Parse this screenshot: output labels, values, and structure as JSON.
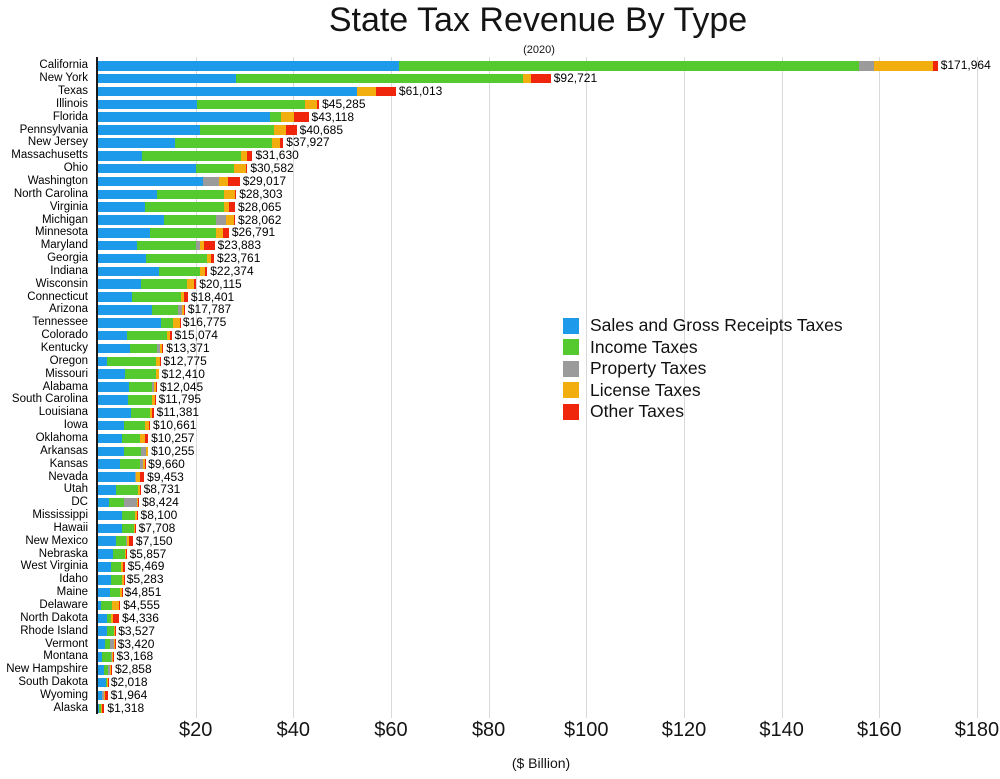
{
  "title": "State Tax Revenue By Type",
  "subtitle": "(2020)",
  "axis": {
    "xlabel": "($ Billion)",
    "ticks": [
      {
        "value": 20,
        "label": "$20"
      },
      {
        "value": 40,
        "label": "$40"
      },
      {
        "value": 60,
        "label": "$60"
      },
      {
        "value": 80,
        "label": "$80"
      },
      {
        "value": 100,
        "label": "$100"
      },
      {
        "value": 120,
        "label": "$120"
      },
      {
        "value": 140,
        "label": "$140"
      },
      {
        "value": 160,
        "label": "$160"
      },
      {
        "value": 180,
        "label": "$180"
      }
    ],
    "xmin": 0,
    "xmax": 182
  },
  "legend": {
    "items": [
      {
        "label": "Sales and Gross Receipts Taxes",
        "color": "#1E9AEA"
      },
      {
        "label": "Income Taxes",
        "color": "#55CA2F"
      },
      {
        "label": "Property Taxes",
        "color": "#9B9B9B"
      },
      {
        "label": "License Taxes",
        "color": "#F2AE0F"
      },
      {
        "label": "Other Taxes",
        "color": "#EF260C"
      }
    ]
  },
  "chart_data": {
    "type": "bar",
    "orientation": "horizontal",
    "stacked": true,
    "title": "State Tax Revenue By Type",
    "subtitle": "(2020)",
    "value_unit": "$ Million",
    "axis_unit": "$ Billion",
    "xlim": [
      0,
      182
    ],
    "grid": true,
    "legend_position": "center-right",
    "series": [
      "Sales and Gross Receipts Taxes",
      "Income Taxes",
      "Property Taxes",
      "License Taxes",
      "Other Taxes"
    ],
    "colors": [
      "#1E9AEA",
      "#55CA2F",
      "#9B9B9B",
      "#F2AE0F",
      "#EF260C"
    ],
    "states": [
      {
        "name": "California",
        "total": 171964,
        "total_label": "$171,964",
        "values": [
          61600,
          94200,
          3100,
          12200,
          864
        ]
      },
      {
        "name": "New York",
        "total": 92721,
        "total_label": "$92,721",
        "values": [
          28200,
          58800,
          0,
          1700,
          4021
        ]
      },
      {
        "name": "Texas",
        "total": 61013,
        "total_label": "$61,013",
        "values": [
          53100,
          0,
          0,
          3900,
          4013
        ]
      },
      {
        "name": "Illinois",
        "total": 45285,
        "total_label": "$45,285",
        "values": [
          20300,
          22000,
          0,
          2600,
          385
        ]
      },
      {
        "name": "Florida",
        "total": 43118,
        "total_label": "$43,118",
        "values": [
          35300,
          2200,
          0,
          2700,
          2918
        ]
      },
      {
        "name": "Pennsylvania",
        "total": 40685,
        "total_label": "$40,685",
        "values": [
          20900,
          15100,
          0,
          2600,
          2085
        ]
      },
      {
        "name": "New Jersey",
        "total": 37927,
        "total_label": "$37,927",
        "values": [
          15800,
          19900,
          0,
          1500,
          727
        ]
      },
      {
        "name": "Massachusetts",
        "total": 31630,
        "total_label": "$31,630",
        "values": [
          9000,
          20300,
          0,
          1300,
          1030
        ]
      },
      {
        "name": "Ohio",
        "total": 30582,
        "total_label": "$30,582",
        "values": [
          20100,
          7700,
          0,
          2600,
          182
        ]
      },
      {
        "name": "Washington",
        "total": 29017,
        "total_label": "$29,017",
        "values": [
          21500,
          0,
          3200,
          2000,
          2317
        ]
      },
      {
        "name": "North Carolina",
        "total": 28303,
        "total_label": "$28,303",
        "values": [
          12000,
          13800,
          0,
          2300,
          203
        ]
      },
      {
        "name": "Virginia",
        "total": 28065,
        "total_label": "$28,065",
        "values": [
          9600,
          16300,
          0,
          900,
          1265
        ]
      },
      {
        "name": "Michigan",
        "total": 28062,
        "total_label": "$28,062",
        "values": [
          13600,
          10600,
          2100,
          1500,
          262
        ]
      },
      {
        "name": "Minnesota",
        "total": 26791,
        "total_label": "$26,791",
        "values": [
          10700,
          13400,
          0,
          1500,
          1191
        ]
      },
      {
        "name": "Maryland",
        "total": 23883,
        "total_label": "$23,883",
        "values": [
          8000,
          12100,
          800,
          900,
          2083
        ]
      },
      {
        "name": "Georgia",
        "total": 23761,
        "total_label": "$23,761",
        "values": [
          9900,
          12500,
          0,
          700,
          661
        ]
      },
      {
        "name": "Indiana",
        "total": 22374,
        "total_label": "$22,374",
        "values": [
          12500,
          8400,
          0,
          1000,
          474
        ]
      },
      {
        "name": "Wisconsin",
        "total": 20115,
        "total_label": "$20,115",
        "values": [
          8900,
          9300,
          0,
          1400,
          515
        ]
      },
      {
        "name": "Connecticut",
        "total": 18401,
        "total_label": "$18,401",
        "values": [
          6900,
          10200,
          0,
          600,
          701
        ]
      },
      {
        "name": "Arizona",
        "total": 17787,
        "total_label": "$17,787",
        "values": [
          11100,
          5300,
          800,
          500,
          87
        ]
      },
      {
        "name": "Tennessee",
        "total": 16775,
        "total_label": "$16,775",
        "values": [
          13000,
          2300,
          0,
          1400,
          75
        ]
      },
      {
        "name": "Colorado",
        "total": 15074,
        "total_label": "$15,074",
        "values": [
          5900,
          8200,
          0,
          700,
          274
        ]
      },
      {
        "name": "Kentucky",
        "total": 13371,
        "total_label": "$13,371",
        "values": [
          6500,
          5500,
          700,
          500,
          171
        ]
      },
      {
        "name": "Oregon",
        "total": 12775,
        "total_label": "$12,775",
        "values": [
          1900,
          9900,
          0,
          900,
          75
        ]
      },
      {
        "name": "Missouri",
        "total": 12410,
        "total_label": "$12,410",
        "values": [
          5600,
          6200,
          0,
          600,
          10
        ]
      },
      {
        "name": "Alabama",
        "total": 12045,
        "total_label": "$12,045",
        "values": [
          6300,
          4700,
          400,
          500,
          145
        ]
      },
      {
        "name": "South Carolina",
        "total": 11795,
        "total_label": "$11,795",
        "values": [
          6100,
          4900,
          0,
          600,
          195
        ]
      },
      {
        "name": "Louisiana",
        "total": 11381,
        "total_label": "$11,381",
        "values": [
          6800,
          3900,
          0,
          450,
          231
        ]
      },
      {
        "name": "Iowa",
        "total": 10661,
        "total_label": "$10,661",
        "values": [
          5400,
          4300,
          0,
          800,
          161
        ]
      },
      {
        "name": "Oklahoma",
        "total": 10257,
        "total_label": "$10,257",
        "values": [
          4900,
          3800,
          0,
          900,
          657
        ]
      },
      {
        "name": "Arkansas",
        "total": 10255,
        "total_label": "$10,255",
        "values": [
          5300,
          3600,
          1000,
          350,
          5
        ]
      },
      {
        "name": "Kansas",
        "total": 9660,
        "total_label": "$9,660",
        "values": [
          4600,
          4000,
          700,
          300,
          60
        ]
      },
      {
        "name": "Nevada",
        "total": 9453,
        "total_label": "$9,453",
        "values": [
          7500,
          0,
          200,
          1000,
          753
        ]
      },
      {
        "name": "Utah",
        "total": 8731,
        "total_label": "$8,731",
        "values": [
          3700,
          4400,
          0,
          400,
          231
        ]
      },
      {
        "name": "DC",
        "total": 8424,
        "total_label": "$8,424",
        "values": [
          2300,
          3000,
          2700,
          200,
          224
        ]
      },
      {
        "name": "Mississippi",
        "total": 8100,
        "total_label": "$8,100",
        "values": [
          5000,
          2500,
          0,
          500,
          100
        ]
      },
      {
        "name": "Hawaii",
        "total": 7708,
        "total_label": "$7,708",
        "values": [
          4900,
          2400,
          0,
          300,
          108
        ]
      },
      {
        "name": "New Mexico",
        "total": 7150,
        "total_label": "$7,150",
        "values": [
          3600,
          2200,
          80,
          400,
          870
        ]
      },
      {
        "name": "Nebraska",
        "total": 5857,
        "total_label": "$5,857",
        "values": [
          3000,
          2600,
          0,
          200,
          57
        ]
      },
      {
        "name": "West Virginia",
        "total": 5469,
        "total_label": "$5,469",
        "values": [
          2600,
          2200,
          0,
          250,
          419
        ]
      },
      {
        "name": "Idaho",
        "total": 5283,
        "total_label": "$5,283",
        "values": [
          2600,
          2350,
          0,
          310,
          23
        ]
      },
      {
        "name": "Maine",
        "total": 4851,
        "total_label": "$4,851",
        "values": [
          2500,
          2000,
          40,
          280,
          31
        ]
      },
      {
        "name": "Delaware",
        "total": 4555,
        "total_label": "$4,555",
        "values": [
          700,
          2250,
          0,
          1450,
          155
        ]
      },
      {
        "name": "North Dakota",
        "total": 4336,
        "total_label": "$4,336",
        "values": [
          1900,
          800,
          0,
          300,
          1336
        ]
      },
      {
        "name": "Rhode Island",
        "total": 3527,
        "total_label": "$3,527",
        "values": [
          1900,
          1450,
          0,
          150,
          27
        ]
      },
      {
        "name": "Vermont",
        "total": 3420,
        "total_label": "$3,420",
        "values": [
          1500,
          1000,
          780,
          110,
          30
        ]
      },
      {
        "name": "Montana",
        "total": 3168,
        "total_label": "$3,168",
        "values": [
          900,
          1700,
          300,
          240,
          28
        ]
      },
      {
        "name": "New Hampshire",
        "total": 2858,
        "total_label": "$2,858",
        "values": [
          1300,
          700,
          400,
          300,
          158
        ]
      },
      {
        "name": "South Dakota",
        "total": 2018,
        "total_label": "$2,018",
        "values": [
          1700,
          50,
          0,
          240,
          28
        ]
      },
      {
        "name": "Wyoming",
        "total": 1964,
        "total_label": "$1,964",
        "values": [
          900,
          0,
          300,
          150,
          614
        ]
      },
      {
        "name": "Alaska",
        "total": 1318,
        "total_label": "$1,318",
        "values": [
          300,
          300,
          120,
          150,
          448
        ]
      }
    ]
  }
}
